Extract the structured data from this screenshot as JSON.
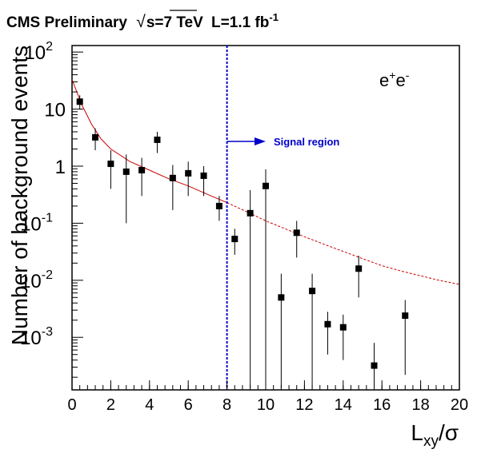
{
  "header": {
    "experiment": "CMS Preliminary",
    "sqrt_symbol": "√",
    "energy": "s=7 TeV",
    "lumi": "L=1.1 fb",
    "lumi_exp": "-1"
  },
  "chart_data": {
    "type": "scatter",
    "title": "CMS Preliminary √s=7 TeV L=1.1 fb⁻¹",
    "xlabel": "L",
    "xlabel_sub": "xy",
    "xlabel_suffix": "/σ",
    "ylabel": "Number of background events",
    "xlim": [
      0,
      20
    ],
    "ylim": [
      0.00012,
      130
    ],
    "yscale": "log",
    "channel_base": "e",
    "channel_sup1": "+",
    "channel_sup2": "-",
    "x_ticks": [
      "0",
      "2",
      "4",
      "6",
      "8",
      "10",
      "12",
      "14",
      "16",
      "18",
      "20"
    ],
    "y_ticks": [
      {
        "value": 100,
        "base": "10",
        "exp": "2"
      },
      {
        "value": 10,
        "base": "10",
        "exp": ""
      },
      {
        "value": 1,
        "base": "1",
        "exp": ""
      },
      {
        "value": 0.1,
        "base": "10",
        "exp": "-1"
      },
      {
        "value": 0.01,
        "base": "10",
        "exp": "-2"
      },
      {
        "value": 0.001,
        "base": "10",
        "exp": "-3"
      }
    ],
    "signal_cut": 8,
    "signal_label": "Signal region",
    "points": [
      {
        "x": 0.4,
        "y": 13.5,
        "lo": 10.0,
        "hi": 17.5
      },
      {
        "x": 1.2,
        "y": 3.2,
        "lo": 1.9,
        "hi": 4.6
      },
      {
        "x": 2.0,
        "y": 1.1,
        "lo": 0.4,
        "hi": 1.9
      },
      {
        "x": 2.8,
        "y": 0.8,
        "lo": 0.1,
        "hi": 1.6
      },
      {
        "x": 3.6,
        "y": 0.85,
        "lo": 0.3,
        "hi": 1.4
      },
      {
        "x": 4.4,
        "y": 2.9,
        "lo": 1.7,
        "hi": 4.0
      },
      {
        "x": 5.2,
        "y": 0.62,
        "lo": 0.17,
        "hi": 1.05
      },
      {
        "x": 6.0,
        "y": 0.75,
        "lo": 0.3,
        "hi": 1.2
      },
      {
        "x": 6.8,
        "y": 0.68,
        "lo": 0.3,
        "hi": 1.0
      },
      {
        "x": 7.6,
        "y": 0.2,
        "lo": 0.11,
        "hi": 0.3
      },
      {
        "x": 8.4,
        "y": 0.053,
        "lo": 0.028,
        "hi": 0.08
      },
      {
        "x": 9.2,
        "y": 0.15,
        "lo": 0.00013,
        "hi": 0.38
      },
      {
        "x": 10.0,
        "y": 0.45,
        "lo": 0.00013,
        "hi": 0.88
      },
      {
        "x": 10.8,
        "y": 0.005,
        "lo": 0.00013,
        "hi": 0.013
      },
      {
        "x": 11.6,
        "y": 0.068,
        "lo": 0.025,
        "hi": 0.11
      },
      {
        "x": 12.4,
        "y": 0.0065,
        "lo": 0.00013,
        "hi": 0.013
      },
      {
        "x": 13.2,
        "y": 0.0017,
        "lo": 0.0005,
        "hi": 0.0028
      },
      {
        "x": 14.0,
        "y": 0.0015,
        "lo": 0.0004,
        "hi": 0.0025
      },
      {
        "x": 14.8,
        "y": 0.016,
        "lo": 0.005,
        "hi": 0.027
      },
      {
        "x": 15.6,
        "y": 0.00032,
        "lo": 0.00013,
        "hi": 0.0008
      },
      {
        "x": 17.2,
        "y": 0.0024,
        "lo": 0.00022,
        "hi": 0.0045
      }
    ],
    "fit_solid": [
      [
        0,
        33
      ],
      [
        0.5,
        12
      ],
      [
        1,
        5.5
      ],
      [
        1.5,
        3.0
      ],
      [
        2,
        2.0
      ],
      [
        3,
        1.2
      ],
      [
        4,
        0.85
      ],
      [
        5,
        0.6
      ],
      [
        6,
        0.45
      ],
      [
        7,
        0.32
      ],
      [
        8,
        0.23
      ]
    ],
    "fit_dashed": [
      [
        8,
        0.23
      ],
      [
        9,
        0.16
      ],
      [
        10,
        0.11
      ],
      [
        11,
        0.08
      ],
      [
        12,
        0.058
      ],
      [
        13,
        0.043
      ],
      [
        14,
        0.032
      ],
      [
        15,
        0.024
      ],
      [
        16,
        0.018
      ],
      [
        17,
        0.0145
      ],
      [
        18,
        0.012
      ],
      [
        19,
        0.0099
      ],
      [
        20,
        0.0085
      ]
    ],
    "colors": {
      "points": "#000000",
      "fit": "#cc0000",
      "signal": "#0000cc"
    }
  }
}
